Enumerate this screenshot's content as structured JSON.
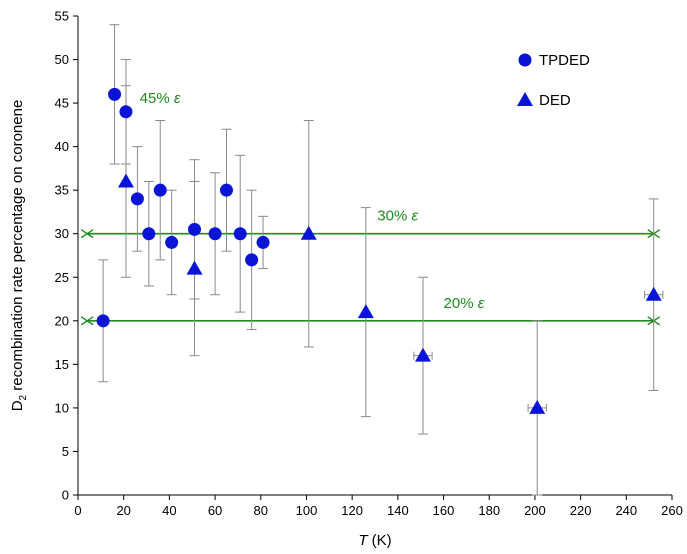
{
  "chart_data": {
    "type": "scatter",
    "xlabel_italic": "T",
    "xlabel_unit": "(K)",
    "ylabel_prefix": "D",
    "ylabel_sub": "2",
    "ylabel_rest": " recombination rate percentage on coronene",
    "xlim": [
      0,
      260
    ],
    "ylim": [
      0,
      55
    ],
    "x_ticks": [
      0,
      20,
      40,
      60,
      80,
      100,
      120,
      140,
      160,
      180,
      200,
      220,
      240,
      260
    ],
    "y_ticks": [
      0,
      5,
      10,
      15,
      20,
      25,
      30,
      35,
      40,
      45,
      50,
      55
    ],
    "grid": false,
    "legend_position": "top-right",
    "colors": {
      "marker": "#0a14d6",
      "reference": "#1e8c1e",
      "errorbar": "#8a8a8a",
      "axis": "#000000"
    },
    "series": [
      {
        "name": "TPDED",
        "marker": "circle",
        "points": [
          {
            "x": 11,
            "y": 20,
            "ylow": 13,
            "yhigh": 27
          },
          {
            "x": 16,
            "y": 46,
            "ylow": 38,
            "yhigh": 54
          },
          {
            "x": 21,
            "y": 44,
            "ylow": 38,
            "yhigh": 50
          },
          {
            "x": 26,
            "y": 34,
            "ylow": 28,
            "yhigh": 40
          },
          {
            "x": 31,
            "y": 30,
            "ylow": 24,
            "yhigh": 36
          },
          {
            "x": 36,
            "y": 35,
            "ylow": 27,
            "yhigh": 43
          },
          {
            "x": 41,
            "y": 29,
            "ylow": 23,
            "yhigh": 35
          },
          {
            "x": 51,
            "y": 30.5,
            "ylow": 22.5,
            "yhigh": 38.5
          },
          {
            "x": 60,
            "y": 30,
            "ylow": 23,
            "yhigh": 37
          },
          {
            "x": 65,
            "y": 35,
            "ylow": 28,
            "yhigh": 42
          },
          {
            "x": 71,
            "y": 30,
            "ylow": 21,
            "yhigh": 39
          },
          {
            "x": 76,
            "y": 27,
            "ylow": 19,
            "yhigh": 35
          },
          {
            "x": 81,
            "y": 29,
            "ylow": 26,
            "yhigh": 32
          }
        ]
      },
      {
        "name": "DED",
        "marker": "triangle",
        "points": [
          {
            "x": 21,
            "y": 36,
            "ylow": 25,
            "yhigh": 47
          },
          {
            "x": 51,
            "y": 26,
            "ylow": 16,
            "yhigh": 36
          },
          {
            "x": 101,
            "y": 30,
            "ylow": 17,
            "yhigh": 43
          },
          {
            "x": 126,
            "y": 21,
            "ylow": 9,
            "yhigh": 33
          },
          {
            "x": 151,
            "y": 16,
            "ylow": 7,
            "yhigh": 25,
            "xlow": 147,
            "xhigh": 155
          },
          {
            "x": 201,
            "y": 10,
            "ylow": 0,
            "yhigh": 20,
            "xlow": 197,
            "xhigh": 205
          },
          {
            "x": 252,
            "y": 23,
            "ylow": 12,
            "yhigh": 34,
            "xlow": 248,
            "xhigh": 256
          }
        ]
      }
    ],
    "reference_lines": [
      {
        "y": 30,
        "x_start": 4,
        "x_end": 252,
        "pct": "30%",
        "label_x": 131,
        "label_y": 31.5
      },
      {
        "y": 20,
        "x_start": 4,
        "x_end": 252,
        "pct": "20%",
        "label_x": 160,
        "label_y": 21.5
      }
    ],
    "annotations": [
      {
        "pct": "45%",
        "symbol": "ε",
        "x": 27,
        "y": 45
      }
    ],
    "epsilon_symbol": "ε"
  }
}
